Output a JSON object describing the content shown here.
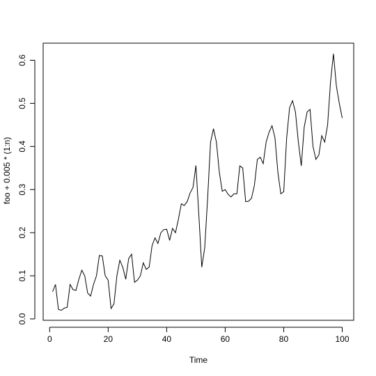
{
  "chart_data": {
    "type": "line",
    "xlabel": "Time",
    "ylabel": "foo + 0.005 * (1:n)",
    "xlim": [
      1,
      100
    ],
    "ylim": [
      0,
      0.62
    ],
    "xticks": [
      0,
      20,
      40,
      60,
      80,
      100
    ],
    "yticks": [
      0.0,
      0.1,
      0.2,
      0.3,
      0.4,
      0.5,
      0.6
    ],
    "ytick_labels": [
      "0.0",
      "0.1",
      "0.2",
      "0.3",
      "0.4",
      "0.5",
      "0.6"
    ],
    "grid": false,
    "line_color": "#000000",
    "series": [
      {
        "x": [
          1,
          2,
          3,
          4,
          5,
          6,
          7,
          8,
          9,
          10,
          11,
          12,
          13,
          14,
          15,
          16,
          17,
          18,
          19,
          20,
          21,
          22,
          23,
          24,
          25,
          26,
          27,
          28,
          29,
          30,
          31,
          32,
          33,
          34,
          35,
          36,
          37,
          38,
          39,
          40,
          41,
          42,
          43,
          44,
          45,
          46,
          47,
          48,
          49,
          50,
          51,
          52,
          53,
          54,
          55,
          56,
          57,
          58,
          59,
          60,
          61,
          62,
          63,
          64,
          65,
          66,
          67,
          68,
          69,
          70,
          71,
          72,
          73,
          74,
          75,
          76,
          77,
          78,
          79,
          80,
          81,
          82,
          83,
          84,
          85,
          86,
          87,
          88,
          89,
          90,
          91,
          92,
          93,
          94,
          95,
          96,
          97,
          98,
          99,
          100
        ],
        "values": [
          0.063,
          0.08,
          0.022,
          0.02,
          0.025,
          0.027,
          0.08,
          0.068,
          0.066,
          0.092,
          0.113,
          0.1,
          0.06,
          0.053,
          0.08,
          0.1,
          0.147,
          0.146,
          0.1,
          0.09,
          0.024,
          0.035,
          0.1,
          0.136,
          0.12,
          0.092,
          0.14,
          0.15,
          0.085,
          0.09,
          0.1,
          0.13,
          0.115,
          0.12,
          0.17,
          0.188,
          0.175,
          0.2,
          0.207,
          0.208,
          0.182,
          0.21,
          0.2,
          0.231,
          0.267,
          0.263,
          0.272,
          0.292,
          0.305,
          0.356,
          0.24,
          0.12,
          0.165,
          0.28,
          0.41,
          0.441,
          0.41,
          0.34,
          0.296,
          0.3,
          0.289,
          0.283,
          0.29,
          0.29,
          0.355,
          0.35,
          0.272,
          0.273,
          0.28,
          0.31,
          0.37,
          0.375,
          0.36,
          0.41,
          0.433,
          0.448,
          0.42,
          0.34,
          0.29,
          0.295,
          0.42,
          0.49,
          0.506,
          0.48,
          0.41,
          0.355,
          0.445,
          0.48,
          0.486,
          0.4,
          0.37,
          0.38,
          0.425,
          0.41,
          0.45,
          0.55,
          0.615,
          0.54,
          0.5,
          0.466
        ]
      }
    ]
  }
}
